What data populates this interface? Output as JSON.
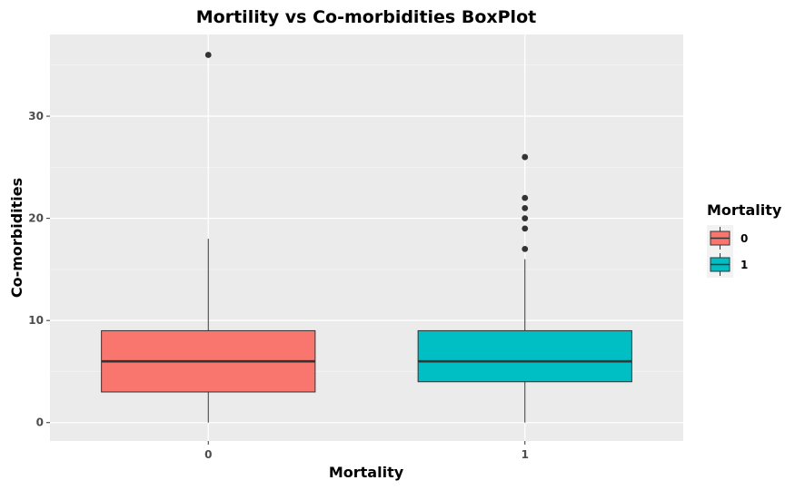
{
  "chart_data": {
    "type": "boxplot",
    "title": "Mortility vs Co-morbidities BoxPlot",
    "xlabel": "Mortality",
    "ylabel": "Co-morbidities",
    "categories": [
      "0",
      "1"
    ],
    "ylim": [
      -1.8,
      38
    ],
    "y_ticks": [
      0,
      10,
      20,
      30
    ],
    "grid": true,
    "legend": {
      "title": "Mortality",
      "position": "right",
      "entries": [
        {
          "label": "0",
          "color": "#F8766D"
        },
        {
          "label": "1",
          "color": "#00BFC4"
        }
      ]
    },
    "boxes": [
      {
        "category": "0",
        "lower_whisker": 0,
        "q1": 3,
        "median": 6,
        "q3": 9,
        "upper_whisker": 18,
        "outliers": [
          36
        ],
        "color": "#F8766D"
      },
      {
        "category": "1",
        "lower_whisker": 0,
        "q1": 4,
        "median": 6,
        "q3": 9,
        "upper_whisker": 16,
        "outliers": [
          17,
          19,
          20,
          21,
          22,
          26
        ],
        "color": "#00BFC4"
      }
    ]
  }
}
